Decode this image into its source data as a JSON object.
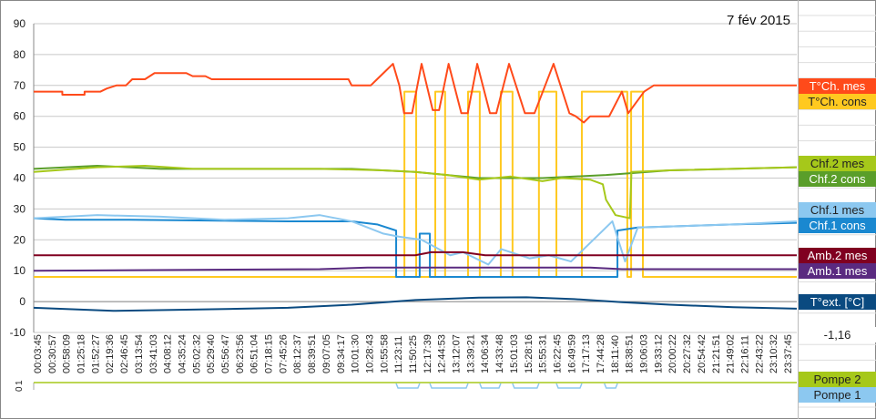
{
  "chart_data": {
    "type": "line",
    "title": "7 fév 2015",
    "ylim": [
      -10,
      90
    ],
    "yticks": [
      "90",
      "80",
      "70",
      "60",
      "50",
      "40",
      "30",
      "20",
      "10",
      "0",
      "-10"
    ],
    "xlim_hours": [
      0,
      24
    ],
    "xticks": [
      "00:03:45",
      "00:30:57",
      "00:58:09",
      "01:25:18",
      "01:52:27",
      "02:19:36",
      "02:46:45",
      "03:13:54",
      "03:41:03",
      "04:08:12",
      "04:35:24",
      "05:02:32",
      "05:29:40",
      "05:56:47",
      "06:23:56",
      "06:51:04",
      "07:18:15",
      "07:45:26",
      "08:12:37",
      "08:39:51",
      "09:07:05",
      "09:34:17",
      "10:01:30",
      "10:28:43",
      "10:55:58",
      "11:23:11",
      "11:50:25",
      "12:17:39",
      "12:44:53",
      "13:12:07",
      "13:39:21",
      "14:06:34",
      "14:33:48",
      "15:01:03",
      "15:28:16",
      "15:55:31",
      "16:22:45",
      "16:49:59",
      "17:17:13",
      "17:44:28",
      "18:11:40",
      "18:38:51",
      "19:06:03",
      "19:33:12",
      "20:00:22",
      "20:27:32",
      "20:54:42",
      "21:21:51",
      "21:49:02",
      "22:16:11",
      "22:43:22",
      "23:10:32",
      "23:37:45"
    ],
    "series": [
      {
        "name": "T°Ch. cons",
        "color": "#ffc920",
        "text": "#222",
        "points": [
          [
            0,
            8
          ],
          [
            11.66,
            8
          ],
          [
            11.66,
            68
          ],
          [
            12.03,
            68
          ],
          [
            12.03,
            8
          ],
          [
            12.63,
            8
          ],
          [
            12.63,
            68
          ],
          [
            12.94,
            68
          ],
          [
            12.94,
            8
          ],
          [
            13.66,
            8
          ],
          [
            13.66,
            68
          ],
          [
            14.03,
            68
          ],
          [
            14.03,
            8
          ],
          [
            14.69,
            8
          ],
          [
            14.69,
            68
          ],
          [
            15.06,
            68
          ],
          [
            15.06,
            8
          ],
          [
            15.89,
            8
          ],
          [
            15.89,
            68
          ],
          [
            16.44,
            68
          ],
          [
            16.44,
            8
          ],
          [
            17.24,
            8
          ],
          [
            17.24,
            68
          ],
          [
            18.67,
            68
          ],
          [
            18.67,
            8
          ],
          [
            18.79,
            8
          ],
          [
            18.79,
            68
          ],
          [
            19.16,
            68
          ],
          [
            19.16,
            8
          ],
          [
            24,
            8
          ]
        ]
      },
      {
        "name": "T°Ch. mes",
        "color": "#ff4a1a",
        "text": "#fff",
        "points": [
          [
            0,
            68
          ],
          [
            0.9,
            68
          ],
          [
            0.9,
            67
          ],
          [
            1.6,
            67
          ],
          [
            1.6,
            68
          ],
          [
            2.1,
            68
          ],
          [
            2.3,
            69
          ],
          [
            2.6,
            70
          ],
          [
            2.9,
            70
          ],
          [
            3.1,
            72
          ],
          [
            3.5,
            72
          ],
          [
            3.8,
            74
          ],
          [
            4.8,
            74
          ],
          [
            5,
            73
          ],
          [
            5.4,
            73
          ],
          [
            5.6,
            72
          ],
          [
            9.9,
            72
          ],
          [
            10,
            70
          ],
          [
            10.6,
            70
          ],
          [
            10.8,
            72
          ],
          [
            11,
            74
          ],
          [
            11.3,
            77
          ],
          [
            11.5,
            70
          ],
          [
            11.65,
            61
          ],
          [
            11.9,
            61
          ],
          [
            12.2,
            77
          ],
          [
            12.55,
            62
          ],
          [
            12.75,
            62
          ],
          [
            13.05,
            77
          ],
          [
            13.45,
            61
          ],
          [
            13.65,
            61
          ],
          [
            13.95,
            77
          ],
          [
            14.35,
            61
          ],
          [
            14.55,
            61
          ],
          [
            14.95,
            77
          ],
          [
            15.45,
            61
          ],
          [
            15.75,
            61
          ],
          [
            16.35,
            77
          ],
          [
            16.85,
            61
          ],
          [
            17.05,
            60
          ],
          [
            17.3,
            58
          ],
          [
            17.5,
            60
          ],
          [
            17.7,
            60
          ],
          [
            18.1,
            60
          ],
          [
            18.5,
            68
          ],
          [
            18.7,
            61
          ],
          [
            19.2,
            68
          ],
          [
            19.5,
            70
          ],
          [
            24,
            70
          ]
        ]
      },
      {
        "name": "Chf.2 cons",
        "color": "#5a9e2a",
        "text": "#fff",
        "points": [
          [
            0,
            43
          ],
          [
            2,
            44
          ],
          [
            4,
            43
          ],
          [
            8,
            43
          ],
          [
            10,
            43
          ],
          [
            12,
            42
          ],
          [
            14,
            40
          ],
          [
            16,
            40
          ],
          [
            18,
            41
          ],
          [
            20,
            42.5
          ],
          [
            24,
            43.5
          ]
        ]
      },
      {
        "name": "Chf.2 mes",
        "color": "#a6c81a",
        "text": "#222",
        "points": [
          [
            0,
            42
          ],
          [
            2,
            43.5
          ],
          [
            3.5,
            44
          ],
          [
            5,
            43
          ],
          [
            9,
            43
          ],
          [
            11,
            42.5
          ],
          [
            12,
            42
          ],
          [
            13,
            41
          ],
          [
            14,
            39.5
          ],
          [
            15,
            40.5
          ],
          [
            16,
            39
          ],
          [
            16.6,
            40
          ],
          [
            17.5,
            39.5
          ],
          [
            17.9,
            38
          ],
          [
            18,
            33
          ],
          [
            18.3,
            28
          ],
          [
            18.75,
            27
          ],
          [
            18.8,
            42
          ],
          [
            20,
            42.5
          ],
          [
            24,
            43.5
          ]
        ]
      },
      {
        "name": "Chf.1 cons",
        "color": "#1a88d0",
        "text": "#fff",
        "points": [
          [
            0,
            27
          ],
          [
            1,
            26.5
          ],
          [
            3,
            26.5
          ],
          [
            8,
            26
          ],
          [
            10,
            26
          ],
          [
            10.8,
            25
          ],
          [
            11.4,
            23
          ],
          [
            11.4,
            8
          ],
          [
            12.14,
            8
          ],
          [
            12.14,
            22
          ],
          [
            12.46,
            22
          ],
          [
            12.46,
            8
          ],
          [
            18.36,
            8
          ],
          [
            18.36,
            23
          ],
          [
            19,
            24
          ],
          [
            22,
            25
          ],
          [
            24,
            25.5
          ]
        ]
      },
      {
        "name": "Chf.1 mes",
        "color": "#8cc8f0",
        "text": "#222",
        "points": [
          [
            0,
            27
          ],
          [
            2,
            28
          ],
          [
            4,
            27.5
          ],
          [
            6,
            26.5
          ],
          [
            8,
            27
          ],
          [
            9,
            28
          ],
          [
            10,
            26
          ],
          [
            11,
            22
          ],
          [
            11.5,
            21
          ],
          [
            12.2,
            20
          ],
          [
            13.1,
            15
          ],
          [
            13.5,
            16
          ],
          [
            14.3,
            12
          ],
          [
            14.7,
            17
          ],
          [
            15.6,
            14
          ],
          [
            16.2,
            15
          ],
          [
            16.9,
            13
          ],
          [
            18.2,
            26
          ],
          [
            18.6,
            13
          ],
          [
            19,
            24
          ],
          [
            22,
            25
          ],
          [
            24,
            26
          ]
        ]
      },
      {
        "name": "Amb.2 mes",
        "color": "#800020",
        "text": "#fff",
        "points": [
          [
            0,
            15
          ],
          [
            12,
            15
          ],
          [
            12.5,
            16
          ],
          [
            13.5,
            16
          ],
          [
            14.2,
            15
          ],
          [
            24,
            15
          ]
        ]
      },
      {
        "name": "Amb.1 mes",
        "color": "#5a2a80",
        "text": "#fff",
        "points": [
          [
            0,
            10
          ],
          [
            9,
            10.5
          ],
          [
            10.5,
            11
          ],
          [
            17.5,
            11
          ],
          [
            18.5,
            10.5
          ],
          [
            24,
            10.5
          ]
        ]
      },
      {
        "name": "T°ext. [°C]",
        "color": "#0a4a80",
        "text": "#fff",
        "points": [
          [
            0,
            -2
          ],
          [
            2.5,
            -3
          ],
          [
            5,
            -2.6
          ],
          [
            8,
            -2
          ],
          [
            10,
            -1
          ],
          [
            12,
            0.5
          ],
          [
            14,
            1.3
          ],
          [
            15.5,
            1.4
          ],
          [
            17,
            0.8
          ],
          [
            18.5,
            -0.2
          ],
          [
            20,
            -1
          ],
          [
            22,
            -1.8
          ],
          [
            24,
            -2.3
          ]
        ]
      }
    ],
    "text_ext_value": "-1,16",
    "pumps": {
      "ylabels": [
        "0",
        "1"
      ],
      "series": [
        {
          "name": "Pompe 2",
          "color": "#a6c81a",
          "text": "#222"
        },
        {
          "name": "Pompe 1",
          "color": "#8cc8f0",
          "text": "#222",
          "off": [
            [
              11.4,
              12.14
            ],
            [
              12.46,
              13.66
            ],
            [
              14.03,
              14.69
            ],
            [
              15.06,
              15.89
            ],
            [
              16.44,
              17.24
            ],
            [
              17.95,
              18.36
            ]
          ]
        }
      ]
    }
  }
}
